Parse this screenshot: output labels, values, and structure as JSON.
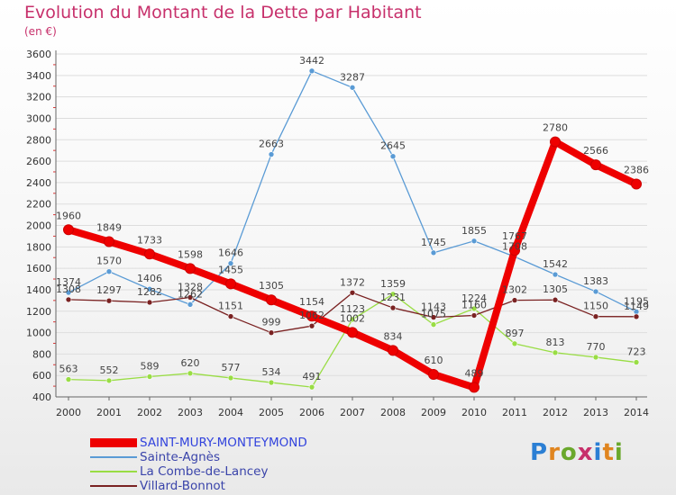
{
  "title": "Evolution du Montant de la Dette par Habitant",
  "subtitle": "(en €)",
  "logo": "Proxiti",
  "chart_data": {
    "type": "line",
    "title": "Evolution du Montant de la Dette par Habitant",
    "subtitle": "(en €)",
    "xlabel": "",
    "ylabel": "",
    "x": [
      "2000",
      "2001",
      "2002",
      "2003",
      "2004",
      "2005",
      "2006",
      "2007",
      "2008",
      "2009",
      "2010",
      "2011",
      "2012",
      "2013",
      "2014"
    ],
    "ylim": [
      400,
      3600
    ],
    "yticks": [
      400,
      600,
      800,
      1000,
      1200,
      1400,
      1600,
      1800,
      2000,
      2200,
      2400,
      2600,
      2800,
      3000,
      3200,
      3400,
      3600
    ],
    "grid": true,
    "legend_position": "bottom-left",
    "series": [
      {
        "name": "SAINT-MURY-MONTEYMOND",
        "color": "#ee0000",
        "emphasis": true,
        "values": [
          1960,
          1849,
          1733,
          1598,
          1455,
          1305,
          1154,
          1002,
          834,
          610,
          489,
          1767,
          2780,
          2566,
          2386
        ]
      },
      {
        "name": "Sainte-Agnès",
        "color": "#5a9bd5",
        "values": [
          1374,
          1570,
          1406,
          1262,
          1646,
          2663,
          3442,
          3287,
          2645,
          1745,
          1855,
          1708,
          1542,
          1383,
          1195
        ]
      },
      {
        "name": "La Combe-de-Lancey",
        "color": "#99dd44",
        "values": [
          563,
          552,
          589,
          620,
          577,
          534,
          491,
          1123,
          1359,
          1075,
          1224,
          897,
          813,
          770,
          723
        ]
      },
      {
        "name": "Villard-Bonnot",
        "color": "#7a2222",
        "values": [
          1308,
          1297,
          1282,
          1328,
          1151,
          999,
          1062,
          1372,
          1231,
          1143,
          1160,
          1302,
          1305,
          1150,
          1149
        ]
      }
    ]
  }
}
